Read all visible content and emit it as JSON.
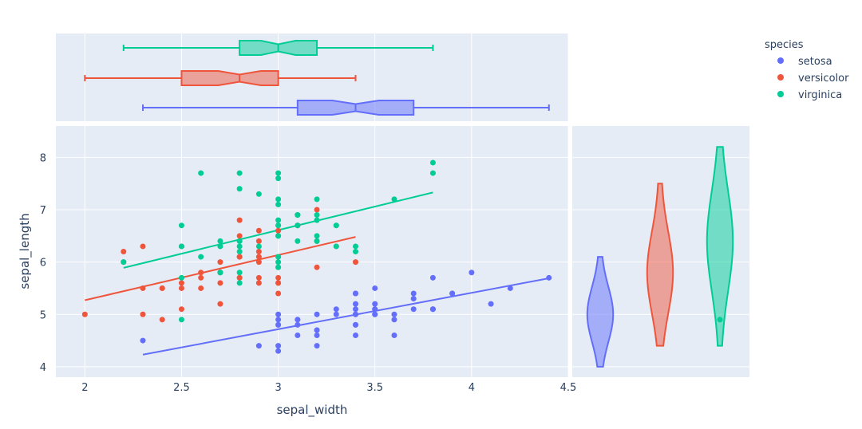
{
  "chart_data": {
    "type": "scatter",
    "title": "",
    "xlabel": "sepal_width",
    "ylabel": "sepal_length",
    "xlim": [
      1.85,
      4.5
    ],
    "ylim": [
      3.8,
      8.6
    ],
    "x_ticks": [
      2,
      2.5,
      3,
      3.5,
      4,
      4.5
    ],
    "x_tick_labels": [
      "2",
      "2.5",
      "3",
      "3.5",
      "4",
      "4.5"
    ],
    "y_ticks": [
      4,
      5,
      6,
      7,
      8
    ],
    "y_tick_labels": [
      "4",
      "5",
      "6",
      "7",
      "8"
    ],
    "legend_title": "species",
    "legend_position": "top-right",
    "marginal_x": "box",
    "marginal_y": "violin",
    "trendline": "ols",
    "series": [
      {
        "name": "setosa",
        "color": "#636efa",
        "points": [
          [
            3.5,
            5.1
          ],
          [
            3.0,
            4.9
          ],
          [
            3.2,
            4.7
          ],
          [
            3.1,
            4.6
          ],
          [
            3.6,
            5.0
          ],
          [
            3.9,
            5.4
          ],
          [
            3.4,
            4.6
          ],
          [
            3.4,
            5.0
          ],
          [
            2.9,
            4.4
          ],
          [
            3.1,
            4.9
          ],
          [
            3.7,
            5.4
          ],
          [
            3.4,
            4.8
          ],
          [
            3.0,
            4.8
          ],
          [
            3.0,
            4.3
          ],
          [
            4.0,
            5.8
          ],
          [
            4.4,
            5.7
          ],
          [
            3.9,
            5.4
          ],
          [
            3.5,
            5.1
          ],
          [
            3.8,
            5.7
          ],
          [
            3.8,
            5.1
          ],
          [
            3.4,
            5.4
          ],
          [
            3.7,
            5.1
          ],
          [
            3.6,
            4.6
          ],
          [
            3.3,
            5.1
          ],
          [
            3.4,
            4.8
          ],
          [
            3.0,
            5.0
          ],
          [
            3.4,
            5.0
          ],
          [
            3.5,
            5.2
          ],
          [
            3.4,
            5.2
          ],
          [
            3.2,
            4.7
          ],
          [
            3.1,
            4.8
          ],
          [
            3.4,
            5.4
          ],
          [
            4.1,
            5.2
          ],
          [
            4.2,
            5.5
          ],
          [
            3.1,
            4.9
          ],
          [
            3.2,
            5.0
          ],
          [
            3.5,
            5.5
          ],
          [
            3.6,
            4.9
          ],
          [
            3.0,
            4.4
          ],
          [
            3.4,
            5.1
          ],
          [
            3.5,
            5.0
          ],
          [
            2.3,
            4.5
          ],
          [
            3.2,
            4.4
          ],
          [
            3.5,
            5.0
          ],
          [
            3.8,
            5.1
          ],
          [
            3.0,
            4.8
          ],
          [
            3.8,
            5.1
          ],
          [
            3.2,
            4.6
          ],
          [
            3.7,
            5.3
          ],
          [
            3.3,
            5.0
          ]
        ],
        "trend": [
          [
            2.3,
            4.23
          ],
          [
            4.4,
            5.69
          ]
        ],
        "box": {
          "min": 2.3,
          "q1": 3.1,
          "median": 3.4,
          "q3": 3.7,
          "max": 4.4,
          "notch_low": 3.28,
          "notch_high": 3.52
        },
        "violin": {
          "min": 4.0,
          "max": 6.1,
          "median": 5.0,
          "mode": 5.0
        }
      },
      {
        "name": "versicolor",
        "color": "#ef553b",
        "points": [
          [
            3.2,
            7.0
          ],
          [
            3.2,
            6.4
          ],
          [
            3.1,
            6.9
          ],
          [
            2.3,
            5.5
          ],
          [
            2.8,
            6.5
          ],
          [
            2.8,
            5.7
          ],
          [
            3.3,
            6.3
          ],
          [
            2.4,
            4.9
          ],
          [
            2.9,
            6.6
          ],
          [
            2.7,
            5.2
          ],
          [
            2.0,
            5.0
          ],
          [
            3.0,
            5.9
          ],
          [
            2.2,
            6.0
          ],
          [
            2.9,
            6.1
          ],
          [
            2.9,
            5.6
          ],
          [
            3.1,
            6.7
          ],
          [
            3.0,
            5.6
          ],
          [
            2.7,
            5.8
          ],
          [
            2.2,
            6.2
          ],
          [
            2.5,
            5.6
          ],
          [
            3.2,
            5.9
          ],
          [
            2.8,
            6.1
          ],
          [
            2.5,
            6.3
          ],
          [
            2.8,
            6.1
          ],
          [
            2.9,
            6.4
          ],
          [
            3.0,
            6.6
          ],
          [
            2.8,
            6.8
          ],
          [
            3.0,
            6.7
          ],
          [
            2.9,
            6.0
          ],
          [
            2.6,
            5.7
          ],
          [
            2.4,
            5.5
          ],
          [
            2.4,
            5.5
          ],
          [
            2.7,
            5.8
          ],
          [
            2.7,
            6.0
          ],
          [
            3.0,
            5.4
          ],
          [
            3.4,
            6.0
          ],
          [
            3.1,
            6.7
          ],
          [
            2.3,
            6.3
          ],
          [
            3.0,
            5.6
          ],
          [
            2.5,
            5.5
          ],
          [
            2.6,
            5.5
          ],
          [
            3.0,
            6.1
          ],
          [
            2.6,
            5.8
          ],
          [
            2.3,
            5.0
          ],
          [
            2.7,
            5.6
          ],
          [
            3.0,
            5.7
          ],
          [
            2.9,
            5.7
          ],
          [
            2.9,
            6.2
          ],
          [
            2.5,
            5.1
          ],
          [
            2.8,
            5.7
          ]
        ],
        "trend": [
          [
            2.0,
            5.27
          ],
          [
            3.4,
            6.48
          ]
        ],
        "box": {
          "min": 2.0,
          "q1": 2.5,
          "median": 2.8,
          "q3": 3.0,
          "max": 3.4,
          "notch_low": 2.69,
          "notch_high": 2.91
        },
        "violin": {
          "min": 4.4,
          "max": 7.5,
          "median": 5.9,
          "mode": 5.8
        }
      },
      {
        "name": "virginica",
        "color": "#00cc96",
        "points": [
          [
            3.3,
            6.3
          ],
          [
            2.7,
            5.8
          ],
          [
            3.0,
            7.1
          ],
          [
            2.9,
            6.3
          ],
          [
            3.0,
            6.5
          ],
          [
            3.0,
            7.6
          ],
          [
            2.5,
            4.9
          ],
          [
            2.9,
            7.3
          ],
          [
            2.5,
            6.7
          ],
          [
            3.6,
            7.2
          ],
          [
            3.2,
            6.5
          ],
          [
            2.7,
            6.4
          ],
          [
            3.0,
            6.8
          ],
          [
            2.5,
            5.7
          ],
          [
            2.8,
            5.8
          ],
          [
            3.2,
            6.4
          ],
          [
            3.0,
            6.5
          ],
          [
            3.8,
            7.7
          ],
          [
            2.6,
            7.7
          ],
          [
            2.2,
            6.0
          ],
          [
            3.2,
            6.9
          ],
          [
            2.8,
            5.6
          ],
          [
            2.8,
            7.7
          ],
          [
            2.7,
            6.3
          ],
          [
            3.3,
            6.7
          ],
          [
            3.2,
            7.2
          ],
          [
            2.8,
            6.2
          ],
          [
            3.0,
            6.1
          ],
          [
            2.8,
            6.4
          ],
          [
            3.0,
            7.2
          ],
          [
            2.8,
            7.4
          ],
          [
            3.8,
            7.9
          ],
          [
            2.8,
            6.4
          ],
          [
            2.8,
            6.3
          ],
          [
            2.6,
            6.1
          ],
          [
            3.0,
            7.7
          ],
          [
            3.4,
            6.3
          ],
          [
            3.1,
            6.4
          ],
          [
            3.0,
            6.0
          ],
          [
            3.1,
            6.9
          ],
          [
            3.1,
            6.7
          ],
          [
            3.1,
            6.9
          ],
          [
            2.7,
            5.8
          ],
          [
            3.2,
            6.8
          ],
          [
            3.3,
            6.7
          ],
          [
            3.0,
            6.7
          ],
          [
            2.5,
            6.3
          ],
          [
            3.0,
            6.5
          ],
          [
            3.4,
            6.2
          ],
          [
            3.0,
            5.9
          ]
        ],
        "trend": [
          [
            2.2,
            5.89
          ],
          [
            3.8,
            7.33
          ]
        ],
        "box": {
          "min": 2.2,
          "q1": 2.8,
          "median": 3.0,
          "q3": 3.2,
          "max": 3.8,
          "notch_low": 2.91,
          "notch_high": 3.09
        },
        "violin": {
          "min": 4.4,
          "max": 8.2,
          "median": 6.5,
          "mode": 6.4,
          "outlier": 4.9
        }
      }
    ]
  }
}
